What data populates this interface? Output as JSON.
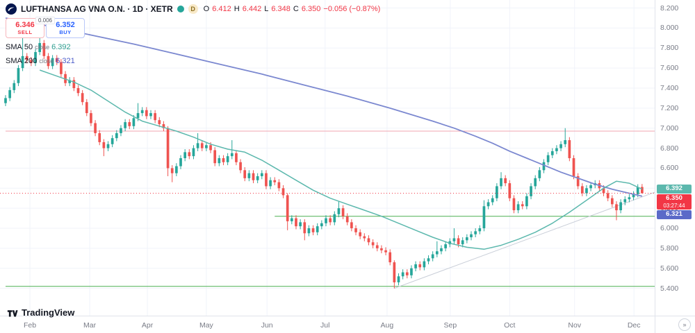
{
  "header": {
    "symbol_title": "LUFTHANSA AG VNA O.N. · 1D · XETR",
    "interval_marker": "D",
    "ohlc": {
      "o_label": "O",
      "o_value": "6.412",
      "h_label": "H",
      "h_value": "6.442",
      "l_label": "L",
      "l_value": "6.348",
      "c_label": "C",
      "c_value": "6.350",
      "change": "−0.056 (−0.87%)"
    },
    "trade": {
      "sell_price": "6.346",
      "sell_label": "SELL",
      "spread": "0.006",
      "buy_price": "6.352",
      "buy_label": "BUY"
    },
    "indicators": [
      {
        "name": "SMA",
        "length": "50",
        "source": "close",
        "value": "6.392",
        "color": "#2f9e8f"
      },
      {
        "name": "SMA",
        "length": "200",
        "source": "close",
        "value": "6.321",
        "color": "#4a5ac9"
      }
    ]
  },
  "footer": {
    "brand": "TradingView",
    "corner_icon": "»"
  },
  "axes": {
    "price_ticks": [
      "8.200",
      "8.000",
      "7.800",
      "7.600",
      "7.400",
      "7.200",
      "7.000",
      "6.800",
      "6.600",
      "6.400",
      "6.200",
      "6.000",
      "5.800",
      "5.600",
      "5.400"
    ],
    "time_ticks": [
      {
        "label": "Feb",
        "i": 5.7
      },
      {
        "label": "Mar",
        "i": 19.7
      },
      {
        "label": "Apr",
        "i": 33.2
      },
      {
        "label": "May",
        "i": 47.0
      },
      {
        "label": "Jun",
        "i": 61.2
      },
      {
        "label": "Jul",
        "i": 74.8
      },
      {
        "label": "Aug",
        "i": 89.3
      },
      {
        "label": "Sep",
        "i": 104.1
      },
      {
        "label": "Oct",
        "i": 118.0
      },
      {
        "label": "Nov",
        "i": 133.2
      },
      {
        "label": "Dec",
        "i": 147.1
      }
    ]
  },
  "badges": [
    {
      "price": 6.392,
      "text": "6.392",
      "bg": "#5cb8ad"
    },
    {
      "price": 6.35,
      "text": "6.350",
      "sub": "03:27:44",
      "bg": "#f23645"
    },
    {
      "price": 6.321,
      "text": "6.321",
      "bg": "#5b6ac8"
    }
  ],
  "chart_data": {
    "type": "candlestick",
    "title": "LUFTHANSA AG VNA O.N. 1D XETR",
    "ylim": [
      5.127,
      8.28
    ],
    "x0": 8,
    "dx": 6.1467,
    "colors": {
      "up": "#26a69a",
      "down": "#ef5350",
      "grid": "#f0f3fa"
    },
    "ohlc": [
      [
        7.25,
        7.33,
        7.22,
        7.3
      ],
      [
        7.3,
        7.41,
        7.27,
        7.38
      ],
      [
        7.38,
        7.48,
        7.35,
        7.45
      ],
      [
        7.45,
        7.63,
        7.42,
        7.6
      ],
      [
        7.6,
        7.9,
        7.57,
        7.72
      ],
      [
        7.72,
        7.75,
        7.65,
        7.68
      ],
      [
        7.68,
        7.71,
        7.62,
        7.65
      ],
      [
        7.65,
        7.79,
        7.62,
        7.76
      ],
      [
        7.76,
        7.92,
        7.73,
        7.85
      ],
      [
        7.85,
        7.88,
        7.69,
        7.72
      ],
      [
        7.72,
        7.75,
        7.59,
        7.62
      ],
      [
        7.62,
        7.73,
        7.59,
        7.7
      ],
      [
        7.7,
        7.73,
        7.63,
        7.66
      ],
      [
        7.66,
        7.69,
        7.51,
        7.54
      ],
      [
        7.54,
        7.57,
        7.42,
        7.45
      ],
      [
        7.45,
        7.51,
        7.42,
        7.48
      ],
      [
        7.48,
        7.51,
        7.37,
        7.4
      ],
      [
        7.4,
        7.43,
        7.32,
        7.35
      ],
      [
        7.35,
        7.38,
        7.23,
        7.26
      ],
      [
        7.26,
        7.29,
        7.12,
        7.15
      ],
      [
        7.15,
        7.18,
        7.02,
        7.05
      ],
      [
        7.05,
        7.08,
        6.92,
        6.95
      ],
      [
        6.95,
        6.98,
        6.83,
        6.86
      ],
      [
        6.86,
        6.89,
        6.72,
        6.8
      ],
      [
        6.8,
        6.87,
        6.77,
        6.84
      ],
      [
        6.84,
        6.93,
        6.81,
        6.9
      ],
      [
        6.9,
        6.98,
        6.87,
        6.95
      ],
      [
        6.95,
        7.03,
        6.92,
        7.0
      ],
      [
        7.0,
        7.09,
        6.97,
        7.06
      ],
      [
        7.06,
        7.09,
        6.99,
        7.02
      ],
      [
        7.02,
        7.13,
        6.99,
        7.1
      ],
      [
        7.1,
        7.25,
        7.07,
        7.15
      ],
      [
        7.15,
        7.21,
        7.12,
        7.18
      ],
      [
        7.18,
        7.21,
        7.09,
        7.12
      ],
      [
        7.12,
        7.18,
        7.09,
        7.15
      ],
      [
        7.15,
        7.18,
        7.05,
        7.08
      ],
      [
        7.08,
        7.11,
        7.01,
        7.04
      ],
      [
        7.04,
        7.07,
        6.97,
        7.0
      ],
      [
        7.0,
        7.02,
        6.52,
        6.6
      ],
      [
        6.6,
        6.63,
        6.46,
        6.55
      ],
      [
        6.55,
        6.65,
        6.52,
        6.62
      ],
      [
        6.62,
        6.73,
        6.59,
        6.7
      ],
      [
        6.7,
        6.79,
        6.67,
        6.76
      ],
      [
        6.76,
        6.79,
        6.69,
        6.72
      ],
      [
        6.72,
        6.83,
        6.69,
        6.8
      ],
      [
        6.8,
        6.95,
        6.77,
        6.85
      ],
      [
        6.85,
        6.88,
        6.77,
        6.8
      ],
      [
        6.8,
        6.86,
        6.77,
        6.83
      ],
      [
        6.83,
        6.86,
        6.75,
        6.78
      ],
      [
        6.78,
        6.81,
        6.62,
        6.65
      ],
      [
        6.65,
        6.73,
        6.62,
        6.7
      ],
      [
        6.7,
        6.73,
        6.63,
        6.66
      ],
      [
        6.66,
        6.75,
        6.63,
        6.72
      ],
      [
        6.72,
        6.88,
        6.69,
        6.75
      ],
      [
        6.75,
        6.78,
        6.63,
        6.66
      ],
      [
        6.66,
        6.69,
        6.55,
        6.58
      ],
      [
        6.58,
        6.61,
        6.47,
        6.5
      ],
      [
        6.5,
        6.58,
        6.47,
        6.55
      ],
      [
        6.55,
        6.58,
        6.45,
        6.48
      ],
      [
        6.48,
        6.55,
        6.45,
        6.52
      ],
      [
        6.52,
        6.58,
        6.49,
        6.55
      ],
      [
        6.55,
        6.58,
        6.39,
        6.42
      ],
      [
        6.42,
        6.51,
        6.39,
        6.48
      ],
      [
        6.48,
        6.51,
        6.43,
        6.46
      ],
      [
        6.46,
        6.49,
        6.37,
        6.4
      ],
      [
        6.4,
        6.43,
        6.3,
        6.33
      ],
      [
        6.33,
        6.35,
        5.98,
        6.07
      ],
      [
        6.07,
        6.13,
        6.04,
        6.1
      ],
      [
        6.1,
        6.13,
        5.99,
        6.02
      ],
      [
        6.02,
        6.09,
        5.99,
        6.06
      ],
      [
        6.06,
        6.09,
        5.88,
        5.95
      ],
      [
        5.95,
        6.03,
        5.92,
        6.0
      ],
      [
        6.0,
        6.03,
        5.93,
        5.96
      ],
      [
        5.96,
        6.05,
        5.93,
        6.02
      ],
      [
        6.02,
        6.08,
        5.99,
        6.05
      ],
      [
        6.05,
        6.13,
        6.02,
        6.1
      ],
      [
        6.1,
        6.13,
        6.03,
        6.06
      ],
      [
        6.06,
        6.17,
        6.03,
        6.14
      ],
      [
        6.14,
        6.27,
        6.11,
        6.2
      ],
      [
        6.2,
        6.23,
        6.09,
        6.12
      ],
      [
        6.12,
        6.15,
        6.03,
        6.06
      ],
      [
        6.06,
        6.09,
        5.97,
        6.0
      ],
      [
        6.0,
        6.03,
        5.93,
        5.96
      ],
      [
        5.96,
        5.99,
        5.89,
        5.92
      ],
      [
        5.92,
        5.95,
        5.87,
        5.9
      ],
      [
        5.9,
        5.93,
        5.83,
        5.86
      ],
      [
        5.86,
        5.89,
        5.8,
        5.83
      ],
      [
        5.83,
        5.86,
        5.77,
        5.8
      ],
      [
        5.8,
        5.83,
        5.75,
        5.78
      ],
      [
        5.78,
        5.81,
        5.73,
        5.76
      ],
      [
        5.76,
        5.79,
        5.63,
        5.66
      ],
      [
        5.66,
        5.68,
        5.4,
        5.46
      ],
      [
        5.46,
        5.55,
        5.43,
        5.52
      ],
      [
        5.52,
        5.59,
        5.49,
        5.56
      ],
      [
        5.56,
        5.59,
        5.5,
        5.53
      ],
      [
        5.53,
        5.63,
        5.5,
        5.6
      ],
      [
        5.6,
        5.67,
        5.57,
        5.64
      ],
      [
        5.64,
        5.67,
        5.58,
        5.61
      ],
      [
        5.61,
        5.7,
        5.58,
        5.67
      ],
      [
        5.67,
        5.73,
        5.64,
        5.7
      ],
      [
        5.7,
        5.77,
        5.67,
        5.74
      ],
      [
        5.74,
        5.87,
        5.71,
        5.77
      ],
      [
        5.77,
        5.83,
        5.74,
        5.8
      ],
      [
        5.8,
        5.87,
        5.77,
        5.84
      ],
      [
        5.84,
        5.9,
        5.81,
        5.87
      ],
      [
        5.87,
        6.0,
        5.84,
        5.9
      ],
      [
        5.9,
        5.93,
        5.81,
        5.84
      ],
      [
        5.84,
        5.91,
        5.81,
        5.88
      ],
      [
        5.88,
        5.94,
        5.85,
        5.91
      ],
      [
        5.91,
        5.97,
        5.88,
        5.94
      ],
      [
        5.94,
        6.0,
        5.91,
        5.97
      ],
      [
        5.97,
        6.03,
        5.94,
        6.0
      ],
      [
        6.0,
        6.28,
        5.97,
        6.22
      ],
      [
        6.22,
        6.29,
        6.19,
        6.26
      ],
      [
        6.26,
        6.33,
        6.23,
        6.3
      ],
      [
        6.3,
        6.45,
        6.27,
        6.42
      ],
      [
        6.42,
        6.56,
        6.39,
        6.5
      ],
      [
        6.5,
        6.53,
        6.42,
        6.45
      ],
      [
        6.45,
        6.48,
        6.27,
        6.3
      ],
      [
        6.3,
        6.33,
        6.15,
        6.18
      ],
      [
        6.18,
        6.27,
        6.15,
        6.24
      ],
      [
        6.24,
        6.27,
        6.19,
        6.22
      ],
      [
        6.22,
        6.35,
        6.19,
        6.32
      ],
      [
        6.32,
        6.45,
        6.29,
        6.42
      ],
      [
        6.42,
        6.53,
        6.39,
        6.5
      ],
      [
        6.5,
        6.61,
        6.47,
        6.58
      ],
      [
        6.58,
        6.69,
        6.55,
        6.66
      ],
      [
        6.66,
        6.76,
        6.63,
        6.73
      ],
      [
        6.73,
        6.8,
        6.7,
        6.77
      ],
      [
        6.77,
        6.83,
        6.74,
        6.8
      ],
      [
        6.8,
        6.87,
        6.77,
        6.84
      ],
      [
        6.84,
        7.0,
        6.81,
        6.88
      ],
      [
        6.88,
        6.91,
        6.67,
        6.7
      ],
      [
        6.7,
        6.73,
        6.49,
        6.52
      ],
      [
        6.52,
        6.55,
        6.39,
        6.42
      ],
      [
        6.42,
        6.45,
        6.32,
        6.35
      ],
      [
        6.35,
        6.43,
        6.32,
        6.4
      ],
      [
        6.4,
        6.46,
        6.37,
        6.43
      ],
      [
        6.43,
        6.48,
        6.4,
        6.45
      ],
      [
        6.45,
        6.48,
        6.37,
        6.4
      ],
      [
        6.4,
        6.43,
        6.32,
        6.35
      ],
      [
        6.35,
        6.38,
        6.27,
        6.3
      ],
      [
        6.3,
        6.33,
        6.21,
        6.24
      ],
      [
        6.24,
        6.27,
        6.08,
        6.18
      ],
      [
        6.18,
        6.29,
        6.15,
        6.26
      ],
      [
        6.26,
        6.32,
        6.23,
        6.29
      ],
      [
        6.29,
        6.34,
        6.26,
        6.31
      ],
      [
        6.31,
        6.37,
        6.28,
        6.34
      ],
      [
        6.34,
        6.44,
        6.31,
        6.41
      ],
      [
        6.412,
        6.442,
        6.348,
        6.35
      ]
    ],
    "sma50": {
      "name": "SMA 50",
      "color": "#5cb8ad",
      "width": 1.5,
      "points": [
        [
          8,
          7.58
        ],
        [
          12,
          7.52
        ],
        [
          16,
          7.46
        ],
        [
          20,
          7.38
        ],
        [
          24,
          7.27
        ],
        [
          28,
          7.16
        ],
        [
          32,
          7.07
        ],
        [
          36,
          7.02
        ],
        [
          40,
          6.97
        ],
        [
          44,
          6.91
        ],
        [
          48,
          6.84
        ],
        [
          52,
          6.79
        ],
        [
          56,
          6.76
        ],
        [
          60,
          6.68
        ],
        [
          64,
          6.58
        ],
        [
          68,
          6.48
        ],
        [
          72,
          6.38
        ],
        [
          76,
          6.3
        ],
        [
          80,
          6.24
        ],
        [
          84,
          6.18
        ],
        [
          88,
          6.12
        ],
        [
          92,
          6.05
        ],
        [
          96,
          5.98
        ],
        [
          100,
          5.91
        ],
        [
          104,
          5.85
        ],
        [
          108,
          5.81
        ],
        [
          112,
          5.79
        ],
        [
          116,
          5.83
        ],
        [
          120,
          5.89
        ],
        [
          124,
          5.96
        ],
        [
          128,
          6.05
        ],
        [
          132,
          6.16
        ],
        [
          136,
          6.28
        ],
        [
          140,
          6.4
        ],
        [
          143,
          6.47
        ],
        [
          146,
          6.45
        ],
        [
          149,
          6.39
        ]
      ]
    },
    "sma200": {
      "name": "SMA 200",
      "color": "#7b88d0",
      "width": 1.8,
      "points": [
        [
          0,
          8.1
        ],
        [
          10,
          8.02
        ],
        [
          20,
          7.93
        ],
        [
          30,
          7.84
        ],
        [
          40,
          7.74
        ],
        [
          50,
          7.64
        ],
        [
          60,
          7.54
        ],
        [
          70,
          7.43
        ],
        [
          80,
          7.32
        ],
        [
          90,
          7.2
        ],
        [
          100,
          7.07
        ],
        [
          105,
          7.0
        ],
        [
          110,
          6.92
        ],
        [
          114,
          6.85
        ],
        [
          118,
          6.77
        ],
        [
          122,
          6.7
        ],
        [
          126,
          6.63
        ],
        [
          130,
          6.56
        ],
        [
          134,
          6.5
        ],
        [
          138,
          6.44
        ],
        [
          142,
          6.39
        ],
        [
          145,
          6.36
        ],
        [
          147,
          6.34
        ],
        [
          149,
          6.32
        ]
      ]
    },
    "levels": [
      {
        "price": 6.97,
        "color": "#f0a6b0",
        "from_i": 0,
        "to_i": 152
      },
      {
        "price": 6.12,
        "color": "#4caf50",
        "from_i": 63,
        "to_i": 152
      },
      {
        "price": 5.42,
        "color": "#4caf50",
        "from_i": 0,
        "to_i": 152
      }
    ],
    "trendline": {
      "from": [
        91,
        5.4
      ],
      "to": [
        152,
        6.36
      ],
      "color": "#c9ced8"
    },
    "price_line": {
      "price": 6.35,
      "color": "#f23645"
    }
  }
}
